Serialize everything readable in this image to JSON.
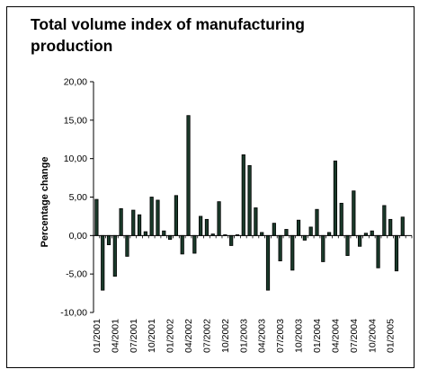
{
  "chart_data": {
    "type": "bar",
    "title": "Total volume index of manufacturing production",
    "xlabel": "",
    "ylabel": "Percentage change",
    "ylim": [
      -10,
      20
    ],
    "yticks": [
      "20,00",
      "15,00",
      "10,00",
      "5,00",
      "0,00",
      "-5,00",
      "-10,00"
    ],
    "ytick_values": [
      20,
      15,
      10,
      5,
      0,
      -5,
      -10
    ],
    "xtick_labels": [
      "01/2001",
      "04/2001",
      "07/2001",
      "10/2001",
      "01/2002",
      "04/2002",
      "07/2002",
      "10/2002",
      "01/2003",
      "04/2003",
      "07/2003",
      "10/2003",
      "01/2004",
      "04/2004",
      "07/2004",
      "10/2004",
      "01/2005"
    ],
    "categories": [
      "01/2001",
      "02/2001",
      "03/2001",
      "04/2001",
      "05/2001",
      "06/2001",
      "07/2001",
      "08/2001",
      "09/2001",
      "10/2001",
      "11/2001",
      "12/2001",
      "01/2002",
      "02/2002",
      "03/2002",
      "04/2002",
      "05/2002",
      "06/2002",
      "07/2002",
      "08/2002",
      "09/2002",
      "10/2002",
      "11/2002",
      "12/2002",
      "01/2003",
      "02/2003",
      "03/2003",
      "04/2003",
      "05/2003",
      "06/2003",
      "07/2003",
      "08/2003",
      "09/2003",
      "10/2003",
      "11/2003",
      "12/2003",
      "01/2004",
      "02/2004",
      "03/2004",
      "04/2004",
      "05/2004",
      "06/2004",
      "07/2004",
      "08/2004",
      "09/2004",
      "10/2004",
      "11/2004",
      "12/2004",
      "01/2005",
      "02/2005",
      "03/2005",
      "04/2005"
    ],
    "values": [
      4.7,
      -7.1,
      -1.2,
      -5.3,
      3.5,
      -2.7,
      3.3,
      2.7,
      0.5,
      5.0,
      4.6,
      0.6,
      -0.5,
      5.2,
      -2.4,
      15.6,
      -2.3,
      2.5,
      2.1,
      0.2,
      4.4,
      0.1,
      -1.3,
      0.1,
      10.5,
      9.1,
      3.6,
      0.4,
      -7.1,
      1.6,
      -3.3,
      0.8,
      -4.5,
      2.0,
      -0.6,
      1.1,
      3.4,
      -3.4,
      0.4,
      9.7,
      4.2,
      -2.6,
      5.8,
      -1.4,
      0.3,
      0.6,
      -4.2,
      3.9,
      2.1,
      -4.6,
      2.4,
      0.0
    ],
    "bar_color": "#1a3a2a",
    "grid": false,
    "legend": "none"
  }
}
